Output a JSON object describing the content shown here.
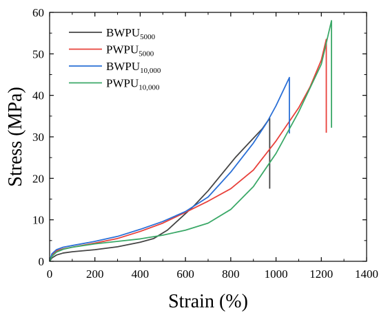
{
  "chart_data": {
    "type": "line",
    "title": "",
    "xlabel": "Strain (%)",
    "ylabel": "Stress (MPa)",
    "xlim": [
      0,
      1400
    ],
    "ylim": [
      0,
      60
    ],
    "x_ticks": [
      0,
      200,
      400,
      600,
      800,
      1000,
      1200,
      1400
    ],
    "y_ticks": [
      0,
      10,
      20,
      30,
      40,
      50,
      60
    ],
    "legend_position": "top-left",
    "grid": false,
    "series": [
      {
        "name": "BWPU",
        "subscript": "5000",
        "color": "#444444",
        "points": [
          [
            0,
            0
          ],
          [
            10,
            0.8
          ],
          [
            30,
            1.5
          ],
          [
            60,
            2
          ],
          [
            100,
            2.3
          ],
          [
            200,
            2.8
          ],
          [
            300,
            3.5
          ],
          [
            400,
            4.6
          ],
          [
            460,
            5.5
          ],
          [
            520,
            7.5
          ],
          [
            580,
            10.5
          ],
          [
            640,
            13.5
          ],
          [
            700,
            17
          ],
          [
            760,
            21
          ],
          [
            820,
            25
          ],
          [
            880,
            28.5
          ],
          [
            940,
            32
          ],
          [
            972,
            34.5
          ],
          [
            972,
            17.5
          ]
        ]
      },
      {
        "name": "PWPU",
        "subscript": "5000",
        "color": "#e8403a",
        "points": [
          [
            0,
            0
          ],
          [
            10,
            1.5
          ],
          [
            30,
            2.5
          ],
          [
            60,
            3
          ],
          [
            100,
            3.4
          ],
          [
            200,
            4.4
          ],
          [
            300,
            5.5
          ],
          [
            400,
            7.2
          ],
          [
            500,
            9.2
          ],
          [
            600,
            11.8
          ],
          [
            700,
            14.5
          ],
          [
            800,
            17.5
          ],
          [
            900,
            22
          ],
          [
            1000,
            29
          ],
          [
            1100,
            37
          ],
          [
            1150,
            42
          ],
          [
            1200,
            48.5
          ],
          [
            1222,
            53.5
          ],
          [
            1222,
            31
          ]
        ]
      },
      {
        "name": "BWPU",
        "subscript": "10,000",
        "color": "#2a6fd6",
        "points": [
          [
            0,
            0
          ],
          [
            10,
            1.8
          ],
          [
            30,
            2.8
          ],
          [
            60,
            3.4
          ],
          [
            100,
            3.8
          ],
          [
            200,
            4.8
          ],
          [
            300,
            6
          ],
          [
            400,
            7.7
          ],
          [
            500,
            9.6
          ],
          [
            600,
            12
          ],
          [
            700,
            15.5
          ],
          [
            800,
            21.5
          ],
          [
            900,
            28.5
          ],
          [
            960,
            33.5
          ],
          [
            1000,
            37.5
          ],
          [
            1059,
            44.3
          ],
          [
            1059,
            30.8
          ]
        ]
      },
      {
        "name": "PWPU",
        "subscript": "10,000",
        "color": "#3aa867",
        "points": [
          [
            0,
            0
          ],
          [
            10,
            1.2
          ],
          [
            30,
            2.2
          ],
          [
            60,
            2.9
          ],
          [
            100,
            3.4
          ],
          [
            200,
            4.2
          ],
          [
            300,
            4.8
          ],
          [
            400,
            5.4
          ],
          [
            500,
            6.3
          ],
          [
            600,
            7.5
          ],
          [
            700,
            9.2
          ],
          [
            800,
            12.5
          ],
          [
            900,
            18
          ],
          [
            1000,
            26
          ],
          [
            1100,
            36
          ],
          [
            1200,
            47.5
          ],
          [
            1245,
            58
          ],
          [
            1245,
            32.2
          ]
        ]
      }
    ]
  }
}
